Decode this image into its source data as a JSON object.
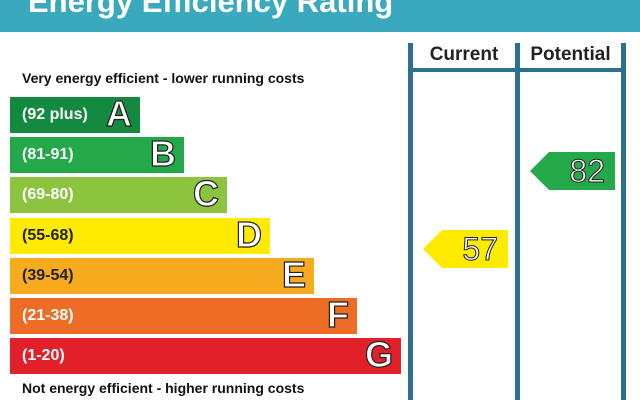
{
  "title": "Energy Efficiency Rating",
  "captions": {
    "top": "Very energy efficient - lower running costs",
    "bottom": "Not energy efficient - higher running costs"
  },
  "columns": {
    "current": "Current",
    "potential": "Potential"
  },
  "bands": [
    {
      "range": "(92 plus)",
      "letter": "A",
      "color": "#138a3f"
    },
    {
      "range": "(81-91)",
      "letter": "B",
      "color": "#23a84a"
    },
    {
      "range": "(69-80)",
      "letter": "C",
      "color": "#8cc43f"
    },
    {
      "range": "(55-68)",
      "letter": "D",
      "color": "#ffea00"
    },
    {
      "range": "(39-54)",
      "letter": "E",
      "color": "#f6ab1f"
    },
    {
      "range": "(21-38)",
      "letter": "F",
      "color": "#ee6d26"
    },
    {
      "range": "(1-20)",
      "letter": "G",
      "color": "#e2202a"
    }
  ],
  "ratings": {
    "current": {
      "value": "57",
      "band": "D",
      "color": "#ffea00"
    },
    "potential": {
      "value": "82",
      "band": "B",
      "color": "#23a84a"
    }
  }
}
